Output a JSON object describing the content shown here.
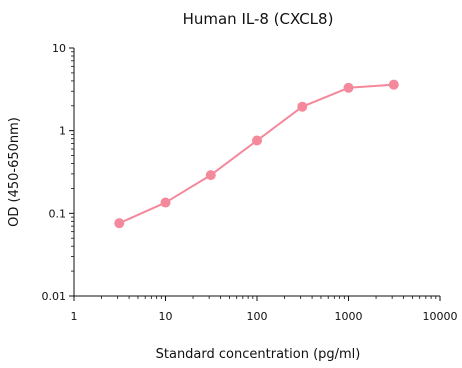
{
  "chart_data": {
    "type": "line",
    "title": "Human IL-8 (CXCL8)",
    "xlabel": "Standard concentration (pg/ml)",
    "ylabel": "OD (450-650nm)",
    "x_scale": "log",
    "y_scale": "log",
    "xlim": [
      1,
      10000
    ],
    "ylim": [
      0.01,
      10
    ],
    "x_ticks": [
      {
        "value": 1,
        "label": "1"
      },
      {
        "value": 10,
        "label": "10"
      },
      {
        "value": 100,
        "label": "100"
      },
      {
        "value": 1000,
        "label": "1000"
      },
      {
        "value": 10000,
        "label": "10000"
      }
    ],
    "y_ticks": [
      {
        "value": 0.01,
        "label": "0.01"
      },
      {
        "value": 0.1,
        "label": "0.1"
      },
      {
        "value": 1,
        "label": "1"
      },
      {
        "value": 10,
        "label": "10"
      }
    ],
    "grid": false,
    "series": [
      {
        "color": "#f4899b",
        "x": [
          3.125,
          10,
          31.25,
          100,
          312.5,
          1000,
          3125
        ],
        "y": [
          0.076,
          0.135,
          0.29,
          0.76,
          1.95,
          3.3,
          3.6
        ]
      }
    ]
  }
}
